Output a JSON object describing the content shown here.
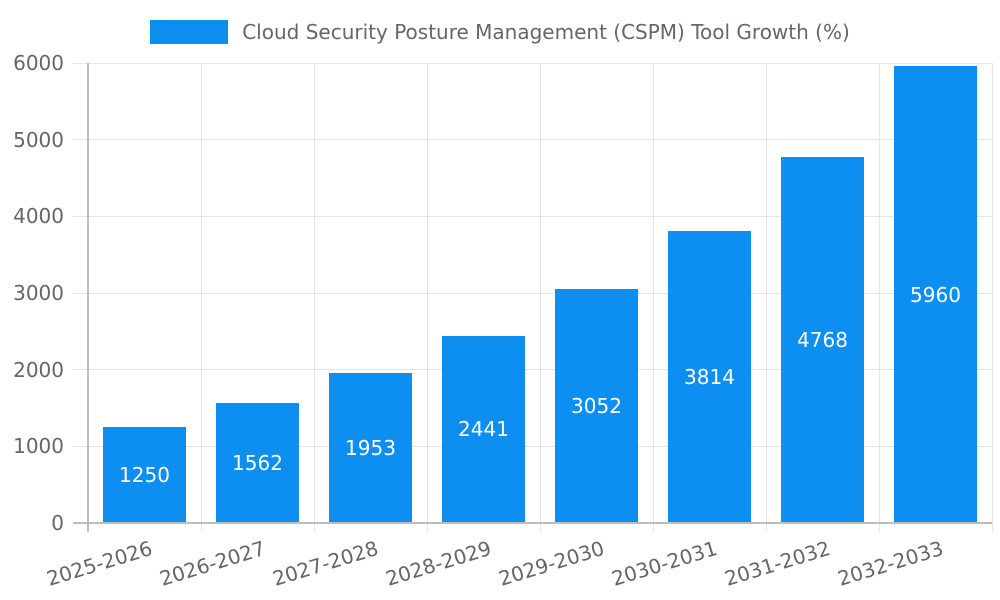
{
  "chart_data": {
    "type": "bar",
    "title": "",
    "legend": {
      "position": "top",
      "label": "Cloud Security Posture Management (CSPM) Tool Growth (%)"
    },
    "categories": [
      "2025-2026",
      "2026-2027",
      "2027-2028",
      "2028-2029",
      "2029-2030",
      "2030-2031",
      "2031-2032",
      "2032-2033"
    ],
    "values": [
      1250,
      1562,
      1953,
      2441,
      3052,
      3814,
      4768,
      5960
    ],
    "bar_value_labels": [
      "1250",
      "1562",
      "1953",
      "2441",
      "3052",
      "3814",
      "4768",
      "5960"
    ],
    "xlabel": "",
    "ylabel": "",
    "ylim": [
      0,
      6000
    ],
    "yticks": [
      0,
      1000,
      2000,
      3000,
      4000,
      5000,
      6000
    ],
    "ytick_labels": [
      "0",
      "1000",
      "2000",
      "3000",
      "4000",
      "5000",
      "6000"
    ],
    "grid": true,
    "x_label_rotation_deg": -17,
    "colors": {
      "bar": "#0d8ff2",
      "grid": "#e5e5e5",
      "axis": "#bdbdbd",
      "tick_text": "#666666",
      "legend_text": "#666666",
      "bar_label_text": "#ffffff",
      "background": "#ffffff"
    }
  }
}
